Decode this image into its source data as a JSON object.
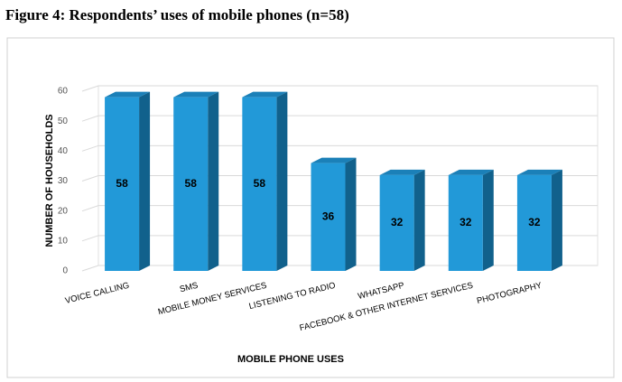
{
  "chart_data": {
    "type": "bar3d",
    "title": "Figure 4: Respondents’ uses of mobile phones (n=58)",
    "y_label": "NUMBER OF HOUSEHOLDS",
    "x_label": "MOBILE PHONE USES",
    "categories": [
      "VOICE CALLING",
      "SMS",
      "MOBILE MONEY SERVICES",
      "LISTENING TO RADIO",
      "WHATSAPP",
      "FACEBOOK  & OTHER INTERNET SERVICES",
      "PHOTOGRAPHY"
    ],
    "values": [
      58,
      58,
      58,
      36,
      32,
      32,
      32
    ],
    "color": "#2299d8",
    "ylim": [
      0,
      60
    ],
    "yticks": [
      0,
      10,
      20,
      30,
      40,
      50,
      60
    ],
    "grid": true
  }
}
